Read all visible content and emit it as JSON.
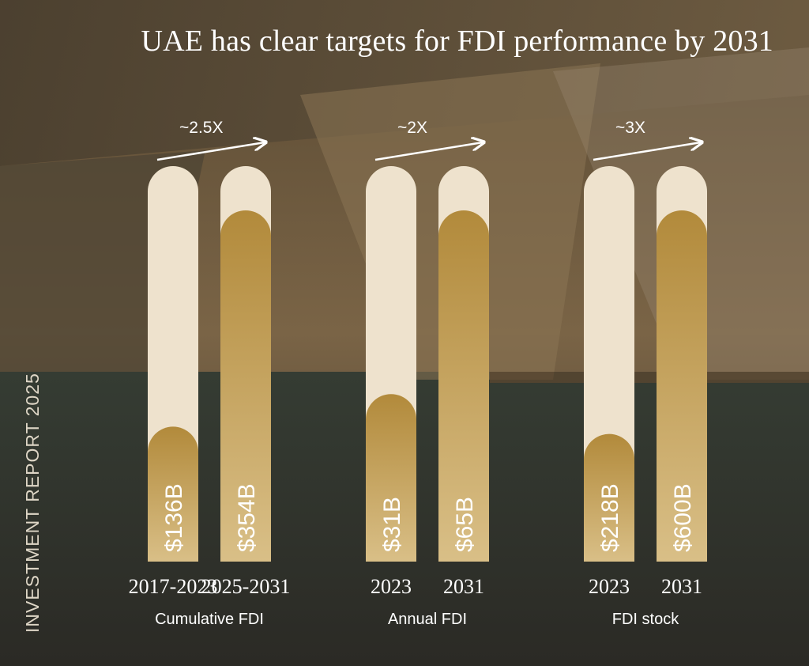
{
  "title": "UAE has clear targets for FDI performance by 2031",
  "side_label": "INVESTMENT REPORT 2025",
  "colors": {
    "track": "#eee2cd",
    "fill_top": "#b28a3b",
    "fill_bottom": "#d9bf87",
    "text": "#ffffff"
  },
  "chart_data": {
    "type": "bar",
    "groups": [
      {
        "name": "Cumulative FDI",
        "multiplier": "~2.5X",
        "categories": [
          "2017-2023",
          "2025-2031"
        ],
        "values": [
          136,
          354
        ],
        "labels": [
          "$136B",
          "$354B"
        ]
      },
      {
        "name": "Annual FDI",
        "multiplier": "~2X",
        "categories": [
          "2023",
          "2031"
        ],
        "values": [
          31,
          65
        ],
        "labels": [
          "$31B",
          "$65B"
        ]
      },
      {
        "name": "FDI stock",
        "multiplier": "~3X",
        "categories": [
          "2023",
          "2031"
        ],
        "values": [
          218,
          600
        ],
        "labels": [
          "$218B",
          "$600B"
        ]
      }
    ]
  }
}
